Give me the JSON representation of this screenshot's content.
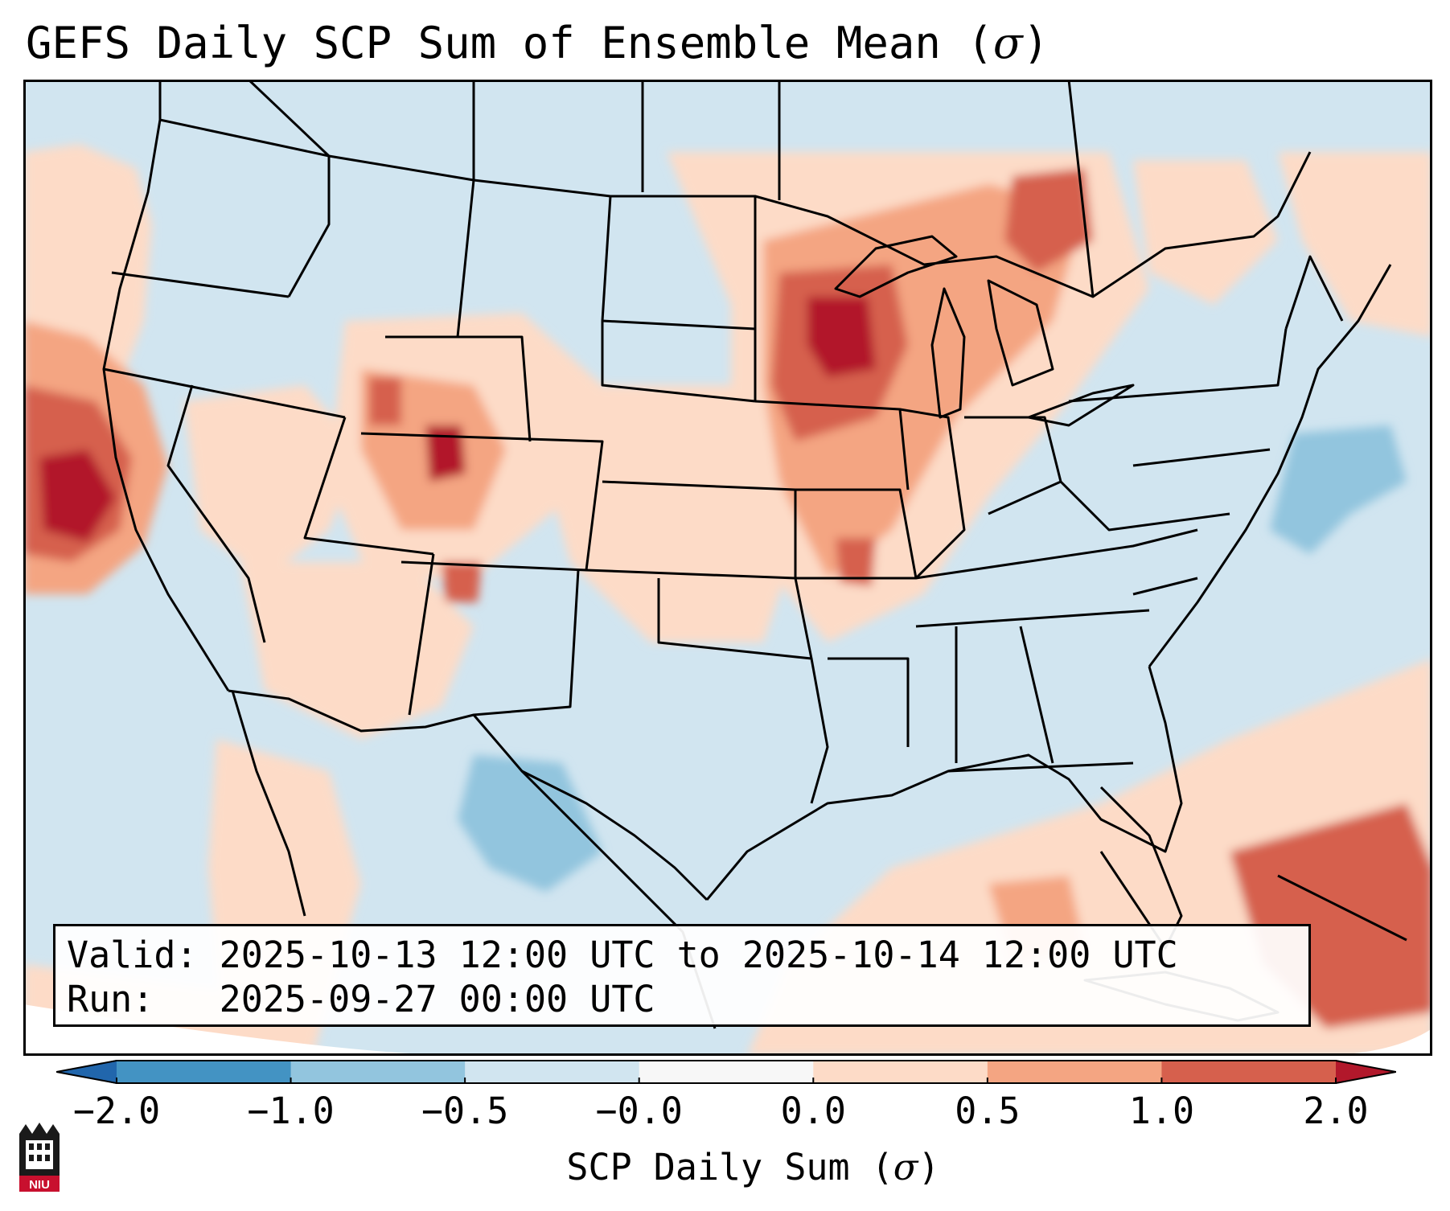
{
  "title": {
    "text": "GEFS Daily SCP Sum of Ensemble Mean (",
    "symbol": "σ",
    "close": ")"
  },
  "info": {
    "valid_label": "Valid:",
    "valid_value": "2025-10-13 12:00 UTC to 2025-10-14 12:00 UTC",
    "run_label": "Run:",
    "run_value": "2025-09-27 00:00 UTC"
  },
  "colorbar": {
    "label_text": "SCP Daily Sum (",
    "label_symbol": "σ",
    "label_close": ")",
    "ticks": [
      "−2.0",
      "−1.0",
      "−0.5",
      "−0.0",
      "0.0",
      "0.5",
      "1.0",
      "2.0"
    ],
    "bins": [
      {
        "range": "< -2.0",
        "color": "#2166ac"
      },
      {
        "range": "-2.0 to -1.0",
        "color": "#4393c3"
      },
      {
        "range": "-1.0 to -0.5",
        "color": "#92c5de"
      },
      {
        "range": "-0.5 to -0.0",
        "color": "#d1e5f0"
      },
      {
        "range": "-0.0 to 0.0",
        "color": "#f7f7f7"
      },
      {
        "range": "0.0 to 0.5",
        "color": "#fddbc7"
      },
      {
        "range": "0.5 to 1.0",
        "color": "#f4a582"
      },
      {
        "range": "1.0 to 2.0",
        "color": "#d6604d"
      },
      {
        "range": "> 2.0",
        "color": "#b2182b"
      }
    ]
  },
  "map": {
    "background_color": "#d1e5f0",
    "regions": [
      {
        "name": "pacific-northwest-coast",
        "level": "0.0 to 0.5"
      },
      {
        "name": "california-coast",
        "level": "1.0 to 2.0"
      },
      {
        "name": "northern-california",
        "level": "> 2.0"
      },
      {
        "name": "great-basin",
        "level": "0.0 to 0.5"
      },
      {
        "name": "central-rockies",
        "level": "0.5 to 1.0"
      },
      {
        "name": "colorado-peak",
        "level": "> 2.0"
      },
      {
        "name": "southwest",
        "level": "0.0 to 0.5"
      },
      {
        "name": "upper-midwest",
        "level": "1.0 to 2.0"
      },
      {
        "name": "wisconsin-peak",
        "level": "> 2.0"
      },
      {
        "name": "great-lakes",
        "level": "0.5 to 1.0"
      },
      {
        "name": "ontario",
        "level": "0.5 to 1.0"
      },
      {
        "name": "mid-mississippi-valley",
        "level": "0.5 to 1.0"
      },
      {
        "name": "northern-mexico",
        "level": "-1.0 to -0.5"
      },
      {
        "name": "western-atlantic",
        "level": "-1.0 to -0.5"
      },
      {
        "name": "gulf-of-mexico",
        "level": "0.0 to 0.5"
      },
      {
        "name": "caribbean",
        "level": "1.0 to 2.0"
      }
    ]
  },
  "logo": {
    "text": "NIU",
    "color": "#c8102e"
  }
}
